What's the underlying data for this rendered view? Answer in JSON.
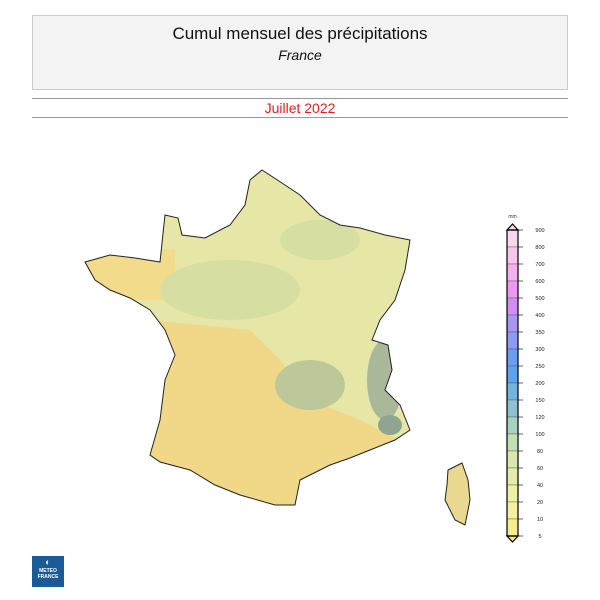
{
  "header": {
    "title": "Cumul mensuel des précipitations",
    "subtitle": "France"
  },
  "period": "Juillet 2022",
  "legend": {
    "unit": "mm",
    "labels": [
      "900",
      "800",
      "700",
      "600",
      "500",
      "400",
      "350",
      "300",
      "250",
      "200",
      "150",
      "120",
      "100",
      "80",
      "60",
      "40",
      "20",
      "10",
      "5"
    ],
    "colors": [
      "#f8d8ec",
      "#f6c6ea",
      "#f2b2ee",
      "#ee98f4",
      "#cf8ef4",
      "#a896f0",
      "#8a9cf2",
      "#6a9ef4",
      "#5ea4ec",
      "#72b4e0",
      "#8ec2d0",
      "#a8d2c0",
      "#c2e0b4",
      "#d8e8ac",
      "#e4ecaa",
      "#eef0a8",
      "#f4f0a0",
      "#f8ec90"
    ]
  },
  "logo": {
    "line1": "METEO",
    "line2": "FRANCE"
  },
  "map_colors": {
    "dry": "#f0d888",
    "light": "#e8e8a8",
    "medium": "#d2dca0",
    "wet": "#a8b898"
  }
}
